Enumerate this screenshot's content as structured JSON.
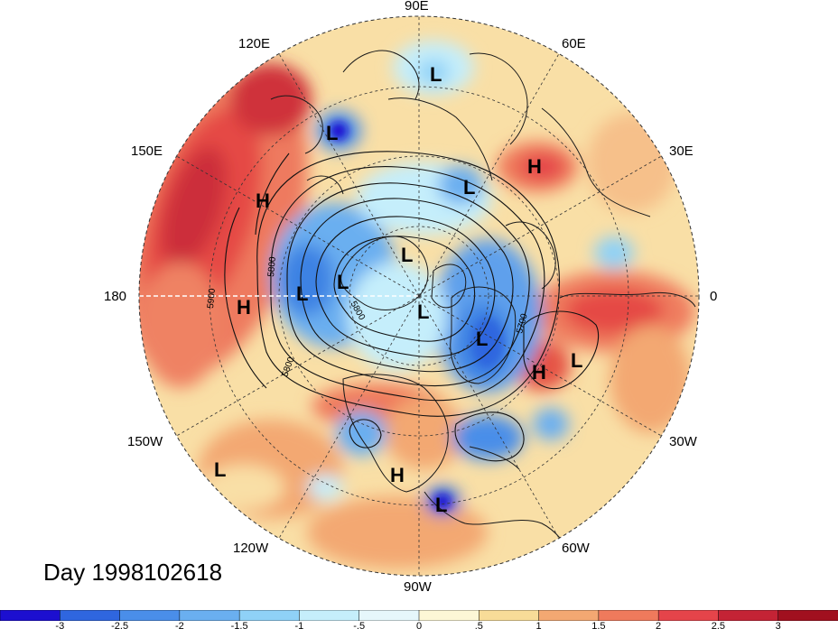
{
  "title": "Day 1998102618",
  "longitude_labels": [
    "90E",
    "60E",
    "30E",
    "0",
    "30W",
    "60W",
    "90W",
    "120W",
    "150W",
    "180",
    "150E",
    "120E"
  ],
  "contour_labels": [
    "5800",
    "5800",
    "5900",
    "5800",
    "5700"
  ],
  "pressure_centers": [
    {
      "label": "L",
      "type": "low"
    },
    {
      "label": "L",
      "type": "low"
    },
    {
      "label": "H",
      "type": "high"
    },
    {
      "label": "L",
      "type": "low"
    },
    {
      "label": "H",
      "type": "high"
    },
    {
      "label": "L",
      "type": "low"
    },
    {
      "label": "H",
      "type": "high"
    },
    {
      "label": "L",
      "type": "low"
    },
    {
      "label": "L",
      "type": "low"
    },
    {
      "label": "L",
      "type": "low"
    },
    {
      "label": "L",
      "type": "low"
    },
    {
      "label": "H",
      "type": "high"
    },
    {
      "label": "L",
      "type": "low"
    },
    {
      "label": "L",
      "type": "low"
    },
    {
      "label": "H",
      "type": "high"
    },
    {
      "label": "L",
      "type": "low"
    }
  ],
  "colorbar": {
    "tick_labels": [
      "-3",
      "-2.5",
      "-2",
      "-1.5",
      "-1",
      "-.5",
      "0",
      ".5",
      "1",
      "1.5",
      "2",
      "2.5",
      "3"
    ],
    "colors": [
      "#1c0fd0",
      "#2f66df",
      "#4a8ee9",
      "#6aaff0",
      "#8fd1f7",
      "#c5eefb",
      "#e6f7fb",
      "#fdf7d6",
      "#f8dc98",
      "#f3a872",
      "#ef7a5c",
      "#e5444a",
      "#c42335",
      "#a1101f"
    ]
  }
}
